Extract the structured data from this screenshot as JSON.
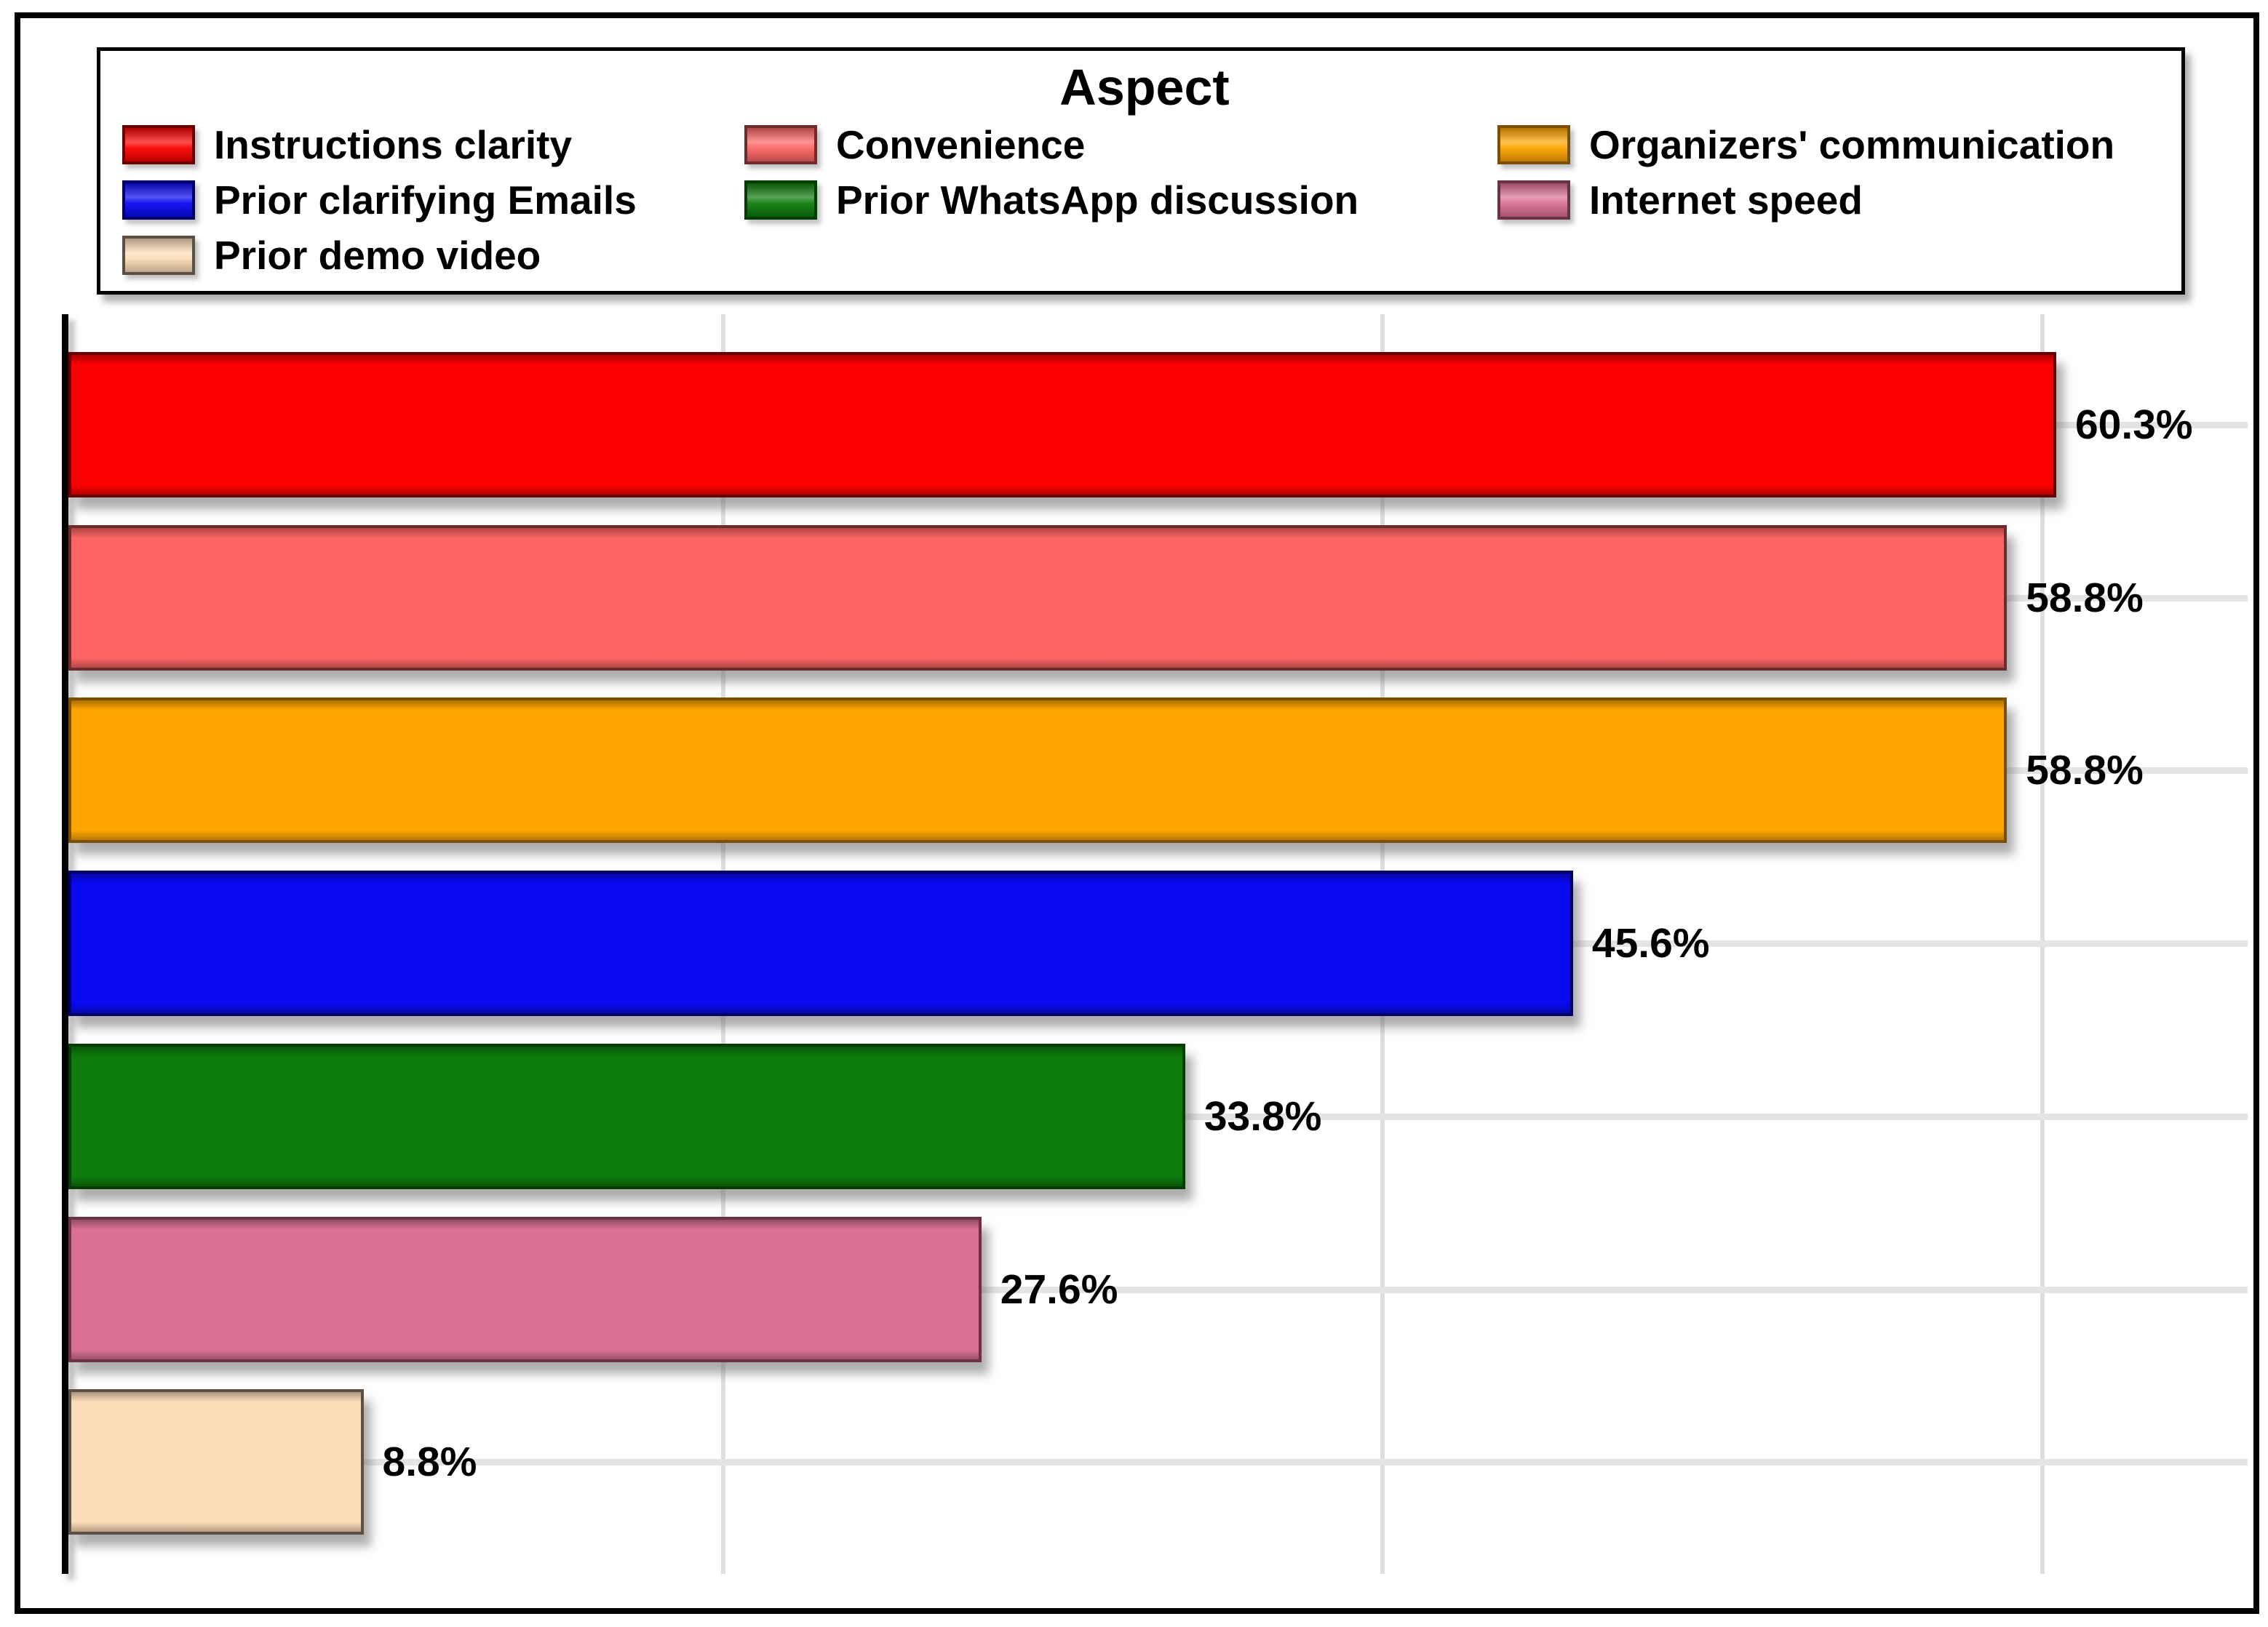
{
  "figure": {
    "background": "#ffffff",
    "border_color": "#000000",
    "gridline_color": "#e0e0e0"
  },
  "legend": {
    "title": "Aspect",
    "position": "top",
    "items": [
      {
        "label": "Instructions clarity",
        "color": "#fb0000",
        "border": "#6b0000"
      },
      {
        "label": "Convenience",
        "color": "#fc6564",
        "border": "#6e2b2b"
      },
      {
        "label": "Organizers' communication",
        "color": "#ffa500",
        "border": "#7a5000"
      },
      {
        "label": "Prior clarifying Emails",
        "color": "#0909f2",
        "border": "#00006b"
      },
      {
        "label": "Prior WhatsApp discussion",
        "color": "#0d7c0d",
        "border": "#043d04"
      },
      {
        "label": "Internet speed",
        "color": "#db7093",
        "border": "#693245"
      },
      {
        "label": "Prior demo video",
        "color": "#fbdcb8",
        "border": "#5c5044"
      }
    ]
  },
  "chart_data": {
    "type": "bar",
    "orientation": "horizontal",
    "title": "Aspect",
    "categories": [
      "Instructions clarity",
      "Convenience",
      "Organizers' communication",
      "Prior clarifying Emails",
      "Prior WhatsApp discussion",
      "Internet speed",
      "Prior demo video"
    ],
    "values": [
      60.3,
      58.8,
      58.8,
      45.6,
      33.8,
      27.6,
      8.8
    ],
    "value_labels": [
      "60.3%",
      "58.8%",
      "58.8%",
      "45.6%",
      "33.8%",
      "27.6%",
      "8.8%"
    ],
    "colors": [
      "#fb0000",
      "#fc6564",
      "#ffa500",
      "#0909f2",
      "#0d7c0d",
      "#db7093",
      "#fbdcb8"
    ],
    "borders": [
      "#6b0000",
      "#6e2b2b",
      "#7a5000",
      "#00006b",
      "#043d04",
      "#693245",
      "#5c5044"
    ],
    "xlabel": "",
    "ylabel": "",
    "xlim": [
      0,
      66.3
    ],
    "x_gridlines": [
      20,
      40,
      60
    ],
    "grid": true,
    "axis_tick_labels_visible": false,
    "legend_position": "top"
  }
}
